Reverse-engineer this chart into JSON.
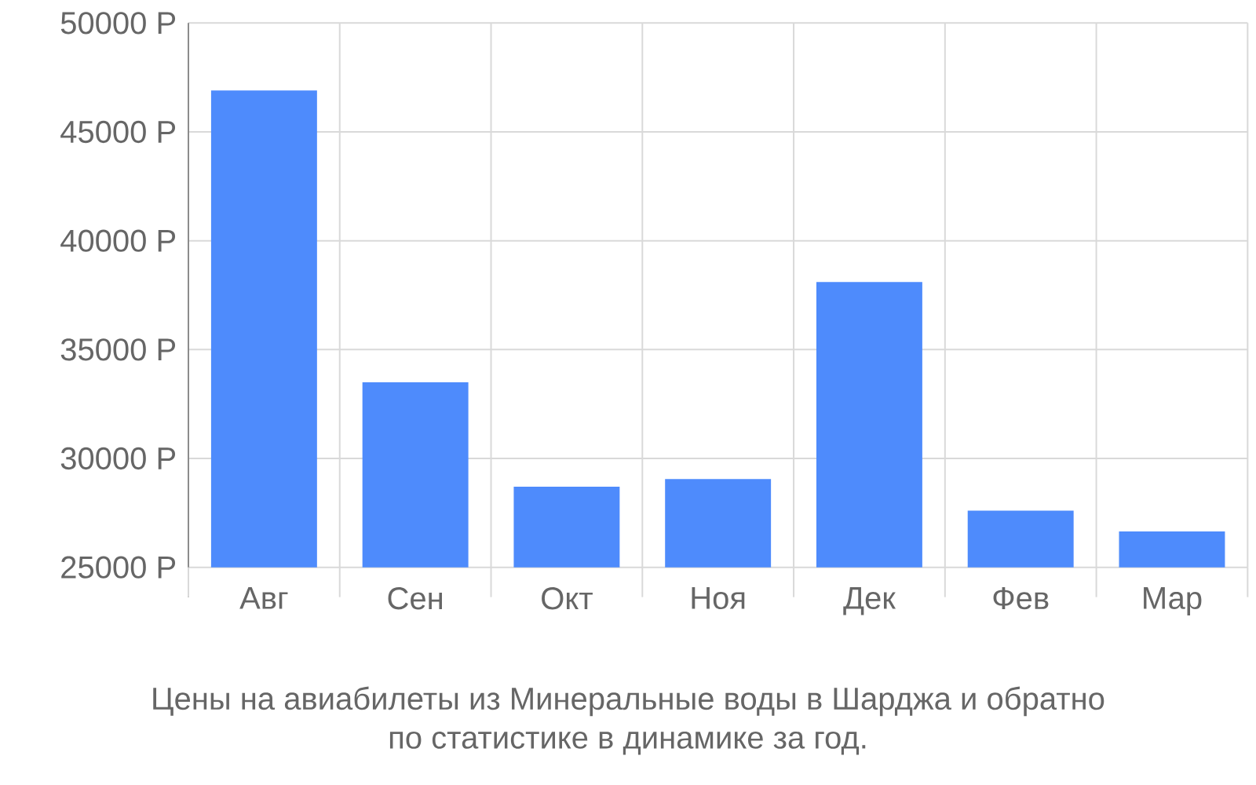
{
  "chart_data": {
    "type": "bar",
    "categories": [
      "Авг",
      "Сен",
      "Окт",
      "Ноя",
      "Дек",
      "Фев",
      "Мар"
    ],
    "values": [
      46900,
      33500,
      28700,
      29050,
      38100,
      27600,
      26650
    ],
    "color": "#4e8bfc",
    "ylim": [
      25000,
      50000
    ],
    "yticks": [
      {
        "value": 25000,
        "label": "25000 Р"
      },
      {
        "value": 30000,
        "label": "30000 Р"
      },
      {
        "value": 35000,
        "label": "35000 Р"
      },
      {
        "value": 40000,
        "label": "40000 Р"
      },
      {
        "value": 45000,
        "label": "45000 Р"
      },
      {
        "value": 50000,
        "label": "50000 Р"
      }
    ],
    "grid": true,
    "annotations": [
      "Цены на авиабилеты из Минеральные воды в Шарджа и обратно",
      "по статистике в динамике за год."
    ]
  }
}
